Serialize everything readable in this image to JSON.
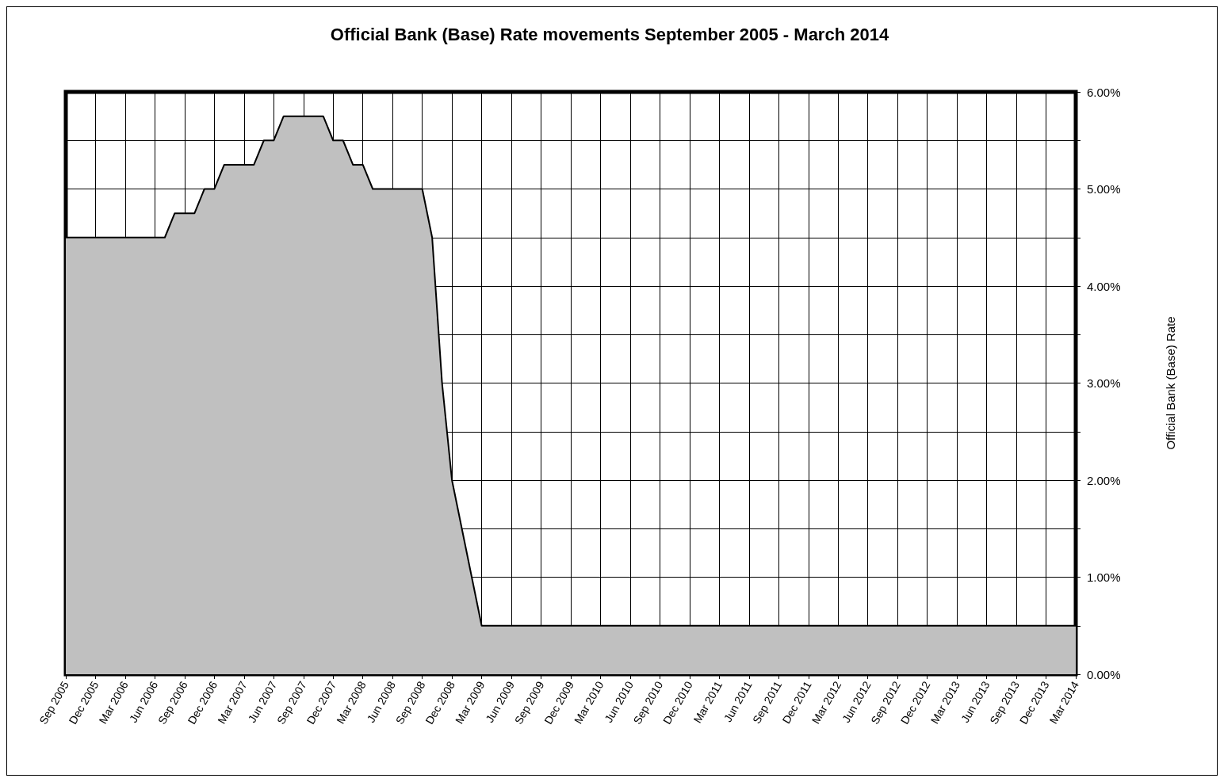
{
  "chart_data": {
    "type": "area",
    "title": "Official Bank (Base) Rate movements September 2005 - March 2014",
    "ylabel": "Official Bank (Base) Rate",
    "categories": [
      "Sep 2005",
      null,
      null,
      "Dec 2005",
      null,
      null,
      "Mar 2006",
      null,
      null,
      "Jun 2006",
      null,
      null,
      "Sep 2006",
      null,
      null,
      "Dec 2006",
      null,
      null,
      "Mar 2007",
      null,
      null,
      "Jun 2007",
      null,
      null,
      "Sep 2007",
      null,
      null,
      "Dec 2007",
      null,
      null,
      "Mar 2008",
      null,
      null,
      "Jun 2008",
      null,
      null,
      "Sep 2008",
      null,
      null,
      "Dec 2008",
      null,
      null,
      "Mar 2009",
      null,
      null,
      "Jun 2009",
      null,
      null,
      "Sep 2009",
      null,
      null,
      "Dec 2009",
      null,
      null,
      "Mar 2010",
      null,
      null,
      "Jun 2010",
      null,
      null,
      "Sep 2010",
      null,
      null,
      "Dec 2010",
      null,
      null,
      "Mar 2011",
      null,
      null,
      "Jun 2011",
      null,
      null,
      "Sep 2011",
      null,
      null,
      "Dec 2011",
      null,
      null,
      "Mar 2012",
      null,
      null,
      "Jun 2012",
      null,
      null,
      "Sep 2012",
      null,
      null,
      "Dec 2012",
      null,
      null,
      "Mar 2013",
      null,
      null,
      "Jun 2013",
      null,
      null,
      "Sep 2013",
      null,
      null,
      "Dec 2013",
      null,
      null,
      "Mar 2014"
    ],
    "series": [
      {
        "color": "#c0c0c0",
        "values": [
          4.5,
          4.5,
          4.5,
          4.5,
          4.5,
          4.5,
          4.5,
          4.5,
          4.5,
          4.5,
          4.5,
          4.75,
          4.75,
          4.75,
          5.0,
          5.0,
          5.25,
          5.25,
          5.25,
          5.25,
          5.5,
          5.5,
          5.75,
          5.75,
          5.75,
          5.75,
          5.75,
          5.5,
          5.5,
          5.25,
          5.25,
          5.0,
          5.0,
          5.0,
          5.0,
          5.0,
          5.0,
          4.5,
          3.0,
          2.0,
          1.5,
          1.0,
          0.5,
          0.5,
          0.5,
          0.5,
          0.5,
          0.5,
          0.5,
          0.5,
          0.5,
          0.5,
          0.5,
          0.5,
          0.5,
          0.5,
          0.5,
          0.5,
          0.5,
          0.5,
          0.5,
          0.5,
          0.5,
          0.5,
          0.5,
          0.5,
          0.5,
          0.5,
          0.5,
          0.5,
          0.5,
          0.5,
          0.5,
          0.5,
          0.5,
          0.5,
          0.5,
          0.5,
          0.5,
          0.5,
          0.5,
          0.5,
          0.5,
          0.5,
          0.5,
          0.5,
          0.5,
          0.5,
          0.5,
          0.5,
          0.5,
          0.5,
          0.5,
          0.5,
          0.5,
          0.5,
          0.5,
          0.5,
          0.5,
          0.5,
          0.5,
          0.5,
          0.5
        ]
      }
    ],
    "ylim": [
      0,
      6
    ],
    "yticks": [
      {
        "value": 0,
        "label": "0.00%"
      },
      {
        "value": 0.5,
        "label": null
      },
      {
        "value": 1,
        "label": "1.00%"
      },
      {
        "value": 1.5,
        "label": null
      },
      {
        "value": 2,
        "label": "2.00%"
      },
      {
        "value": 2.5,
        "label": null
      },
      {
        "value": 3,
        "label": "3.00%"
      },
      {
        "value": 3.5,
        "label": null
      },
      {
        "value": 4,
        "label": "4.00%"
      },
      {
        "value": 4.5,
        "label": null
      },
      {
        "value": 5,
        "label": "5.00%"
      },
      {
        "value": 5.5,
        "label": null
      },
      {
        "value": 6,
        "label": "6.00%"
      }
    ],
    "grid": true,
    "marker": "none",
    "line_style": "solid"
  }
}
